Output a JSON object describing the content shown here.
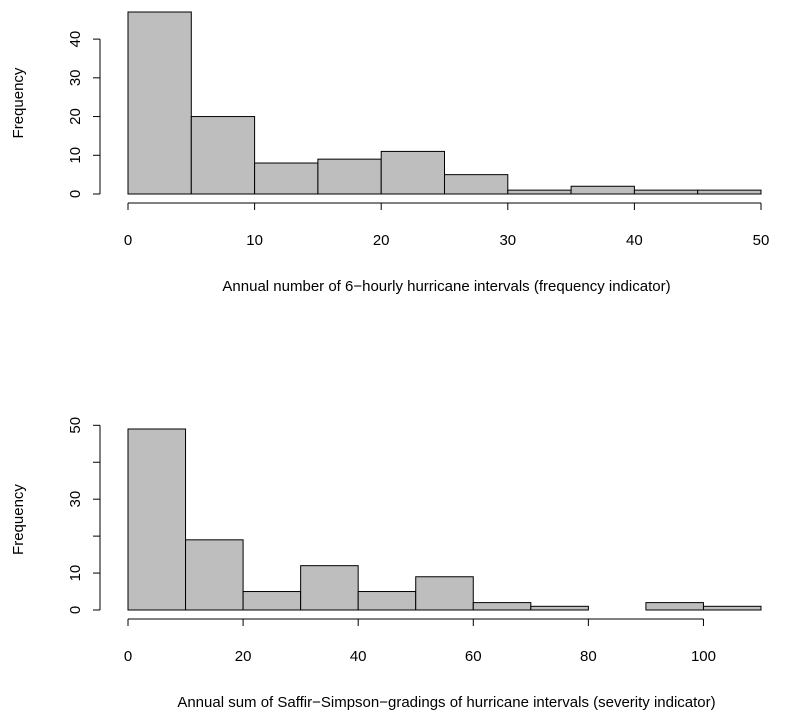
{
  "chart_data": [
    {
      "type": "histogram",
      "x_label": "Annual number of 6−hourly hurricane intervals (frequency indicator)",
      "y_label": "Frequency",
      "bins": [
        0,
        5,
        10,
        15,
        20,
        25,
        30,
        35,
        40,
        45,
        50
      ],
      "values": [
        47,
        20,
        8,
        9,
        11,
        5,
        1,
        2,
        1,
        1
      ],
      "color": "#bebebe",
      "xlim": [
        0,
        50
      ],
      "xticks": [
        0,
        10,
        20,
        30,
        40,
        50
      ],
      "ylim": [
        0,
        47
      ],
      "yticks": [
        0,
        10,
        20,
        30,
        40
      ]
    },
    {
      "type": "histogram",
      "x_label": "Annual sum of Saffir−Simpson−gradings of hurricane intervals (severity indicator)",
      "y_label": "Frequency",
      "bins": [
        0,
        10,
        20,
        30,
        40,
        50,
        60,
        70,
        80,
        90,
        100,
        110
      ],
      "values": [
        49,
        19,
        5,
        12,
        5,
        9,
        2,
        1,
        0,
        2,
        1
      ],
      "color": "#bebebe",
      "xlim": [
        0,
        110
      ],
      "xticks": [
        0,
        20,
        40,
        60,
        80,
        100
      ],
      "ylim": [
        0,
        49
      ],
      "yticks": [
        0,
        10,
        {
          "value": 20,
          "label": null
        },
        30,
        {
          "value": 40,
          "label": null
        },
        50
      ]
    }
  ]
}
